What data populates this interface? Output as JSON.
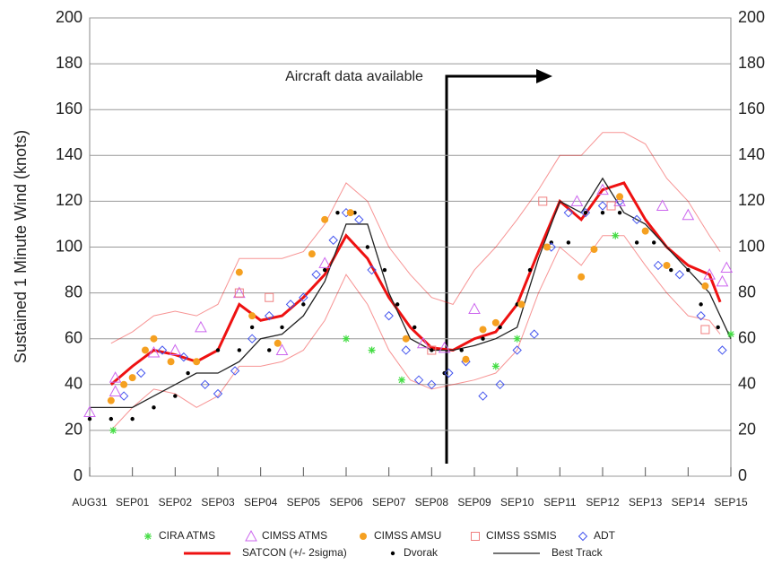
{
  "chart_data": {
    "type": "scatter",
    "y_label": "Sustained 1 Minute Wind (knots)",
    "annotation": "Aircraft data available",
    "ylim": [
      0,
      200
    ],
    "yticks": [
      0,
      20,
      40,
      60,
      80,
      100,
      120,
      140,
      160,
      180,
      200
    ],
    "xlim": [
      0,
      15
    ],
    "xticks": [
      {
        "value": 0,
        "label": "AUG31"
      },
      {
        "value": 1,
        "label": "SEP01"
      },
      {
        "value": 2,
        "label": "SEP02"
      },
      {
        "value": 3,
        "label": "SEP03"
      },
      {
        "value": 4,
        "label": "SEP04"
      },
      {
        "value": 5,
        "label": "SEP05"
      },
      {
        "value": 6,
        "label": "SEP06"
      },
      {
        "value": 7,
        "label": "SEP07"
      },
      {
        "value": 8,
        "label": "SEP08"
      },
      {
        "value": 9,
        "label": "SEP09"
      },
      {
        "value": 10,
        "label": "SEP10"
      },
      {
        "value": 11,
        "label": "SEP11"
      },
      {
        "value": 12,
        "label": "SEP12"
      },
      {
        "value": 13,
        "label": "SEP13"
      },
      {
        "value": 14,
        "label": "SEP14"
      },
      {
        "value": 15,
        "label": "SEP15"
      }
    ],
    "grid": true,
    "series": [
      {
        "name": "CIRA ATMS",
        "color": "#44dd44",
        "marker": "star",
        "x": [
          0.55,
          6,
          6.6,
          7.3,
          9.5,
          10,
          12.3,
          15
        ],
        "values": [
          20,
          60,
          55,
          42,
          48,
          60,
          105,
          62
        ]
      },
      {
        "name": "CIMSS ATMS",
        "color": "#cc66ee",
        "marker": "triangle",
        "x": [
          0,
          0.6,
          0.6,
          1.5,
          2,
          2.6,
          3.5,
          4.5,
          5.5,
          7.8,
          8.3,
          9,
          11.4,
          12,
          12.4,
          13.4,
          14,
          14.5,
          14.9,
          14.8
        ],
        "values": [
          28,
          43,
          37,
          54,
          55,
          65,
          80,
          55,
          93,
          58,
          56,
          73,
          120,
          125,
          120,
          118,
          114,
          88,
          91,
          85
        ]
      },
      {
        "name": "CIMSS AMSU",
        "color": "#f5a020",
        "marker": "circle",
        "x": [
          0.5,
          0.8,
          1,
          1.3,
          1.5,
          1.9,
          2.5,
          3.5,
          3.8,
          4.4,
          5.2,
          5.5,
          6.1,
          7.4,
          8.8,
          9.2,
          9.5,
          10.1,
          10.7,
          11.5,
          11.8,
          12.4,
          13,
          13.5,
          14.4
        ],
        "values": [
          33,
          40,
          43,
          55,
          60,
          50,
          50,
          89,
          70,
          58,
          97,
          112,
          115,
          60,
          51,
          64,
          67,
          75,
          100,
          87,
          99,
          122,
          107,
          92,
          83
        ]
      },
      {
        "name": "CIMSS SSMIS",
        "color": "#f08080",
        "marker": "square",
        "x": [
          3.5,
          4.2,
          8,
          10.6,
          12.2,
          14.4
        ],
        "values": [
          80,
          78,
          55,
          120,
          118,
          64
        ]
      },
      {
        "name": "ADT",
        "color": "#4455ee",
        "marker": "diamond",
        "x": [
          0.8,
          1.2,
          1.7,
          2.2,
          2.7,
          3,
          3.4,
          3.8,
          4.2,
          4.7,
          5,
          5.3,
          5.7,
          6,
          6.3,
          6.6,
          7,
          7.4,
          7.7,
          8,
          8.4,
          8.8,
          9.2,
          9.6,
          10,
          10.4,
          10.8,
          11.2,
          11.6,
          12,
          12.4,
          12.8,
          13.3,
          13.8,
          14.3,
          14.8
        ],
        "values": [
          35,
          45,
          55,
          52,
          40,
          36,
          46,
          60,
          70,
          75,
          78,
          88,
          103,
          115,
          112,
          90,
          70,
          55,
          42,
          40,
          45,
          50,
          35,
          40,
          55,
          62,
          100,
          115,
          115,
          118,
          120,
          112,
          92,
          88,
          70,
          55
        ]
      },
      {
        "name": "SATCON (+/- 2sigma)",
        "color": "#ee1111",
        "marker": "line",
        "x": [
          0.5,
          1,
          1.5,
          2,
          2.5,
          3,
          3.5,
          4,
          4.5,
          5,
          5.5,
          6,
          6.5,
          7,
          7.5,
          8,
          8.5,
          9,
          9.5,
          10,
          10.5,
          11,
          11.5,
          12,
          12.5,
          13,
          13.5,
          14,
          14.5,
          14.75
        ],
        "values": [
          40,
          48,
          55,
          53,
          50,
          55,
          75,
          68,
          70,
          78,
          88,
          105,
          95,
          78,
          65,
          56,
          55,
          60,
          63,
          75,
          98,
          120,
          112,
          125,
          128,
          112,
          100,
          92,
          88,
          76
        ],
        "upper": [
          58,
          63,
          70,
          72,
          70,
          75,
          95,
          95,
          95,
          98,
          110,
          128,
          120,
          100,
          88,
          78,
          75,
          90,
          100,
          112,
          125,
          140,
          140,
          150,
          150,
          145,
          130,
          120,
          105,
          98
        ],
        "lower": [
          20,
          30,
          38,
          36,
          30,
          35,
          48,
          48,
          50,
          55,
          68,
          88,
          75,
          55,
          42,
          38,
          40,
          42,
          45,
          55,
          80,
          100,
          92,
          105,
          105,
          92,
          80,
          70,
          68,
          62
        ]
      },
      {
        "name": "Dvorak",
        "color": "#000000",
        "marker": "dot",
        "x": [
          0,
          0.5,
          1,
          1.5,
          2,
          2.3,
          3,
          3.5,
          3.8,
          4.2,
          4.5,
          5,
          5.5,
          5.8,
          6.2,
          6.5,
          6.9,
          7.2,
          7.6,
          8,
          8.3,
          8.7,
          9.2,
          9.6,
          10,
          10.3,
          10.8,
          11.2,
          11.6,
          12,
          12.4,
          12.8,
          13.2,
          13.6,
          14,
          14.3,
          14.7
        ],
        "values": [
          25,
          25,
          25,
          30,
          35,
          45,
          55,
          55,
          65,
          55,
          65,
          75,
          90,
          115,
          115,
          100,
          90,
          75,
          65,
          55,
          45,
          55,
          60,
          65,
          75,
          90,
          102,
          102,
          115,
          115,
          115,
          102,
          102,
          90,
          90,
          75,
          65
        ]
      },
      {
        "name": "Best Track",
        "color": "#222222",
        "marker": "line",
        "x": [
          0,
          0.5,
          1,
          1.5,
          2,
          2.5,
          3,
          3.5,
          4,
          4.5,
          5,
          5.5,
          6,
          6.5,
          7,
          7.5,
          8,
          8.5,
          9,
          9.5,
          10,
          10.5,
          11,
          11.5,
          12,
          12.5,
          13,
          13.5,
          14,
          14.5,
          15
        ],
        "values": [
          30,
          30,
          30,
          35,
          40,
          45,
          45,
          50,
          60,
          62,
          70,
          85,
          110,
          110,
          80,
          60,
          55,
          55,
          57,
          60,
          65,
          95,
          120,
          115,
          130,
          115,
          110,
          100,
          90,
          80,
          60
        ]
      }
    ]
  }
}
